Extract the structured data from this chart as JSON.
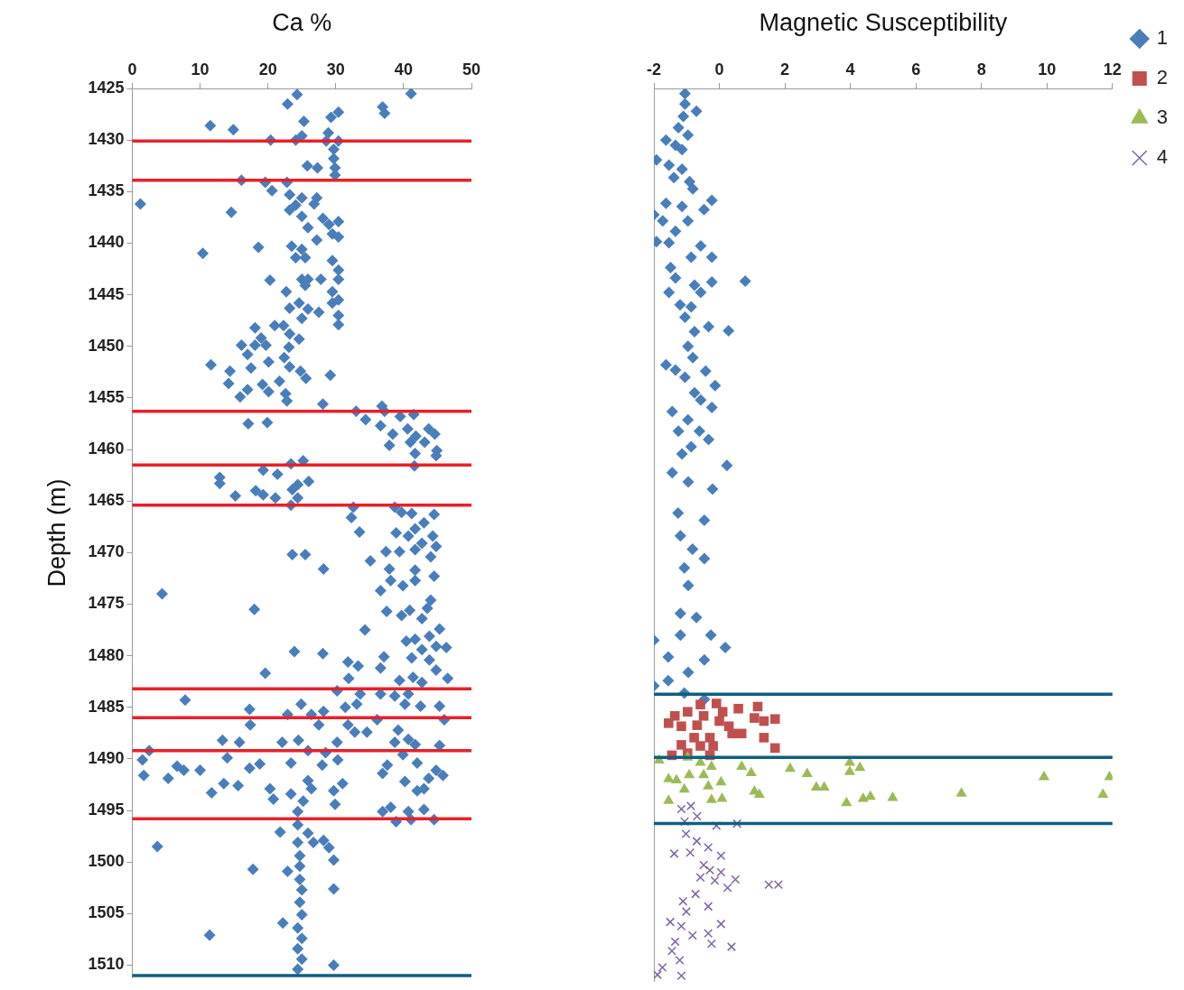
{
  "chart_data": [
    {
      "type": "scatter",
      "xlabel": "Ca %",
      "ylabel": "Depth (m)",
      "xlim": [
        0,
        50
      ],
      "xticks": [
        0,
        10,
        20,
        30,
        40,
        50
      ],
      "ylim": [
        1511.2,
        1425
      ],
      "yticks": [
        1425,
        1430,
        1435,
        1440,
        1445,
        1450,
        1455,
        1460,
        1465,
        1470,
        1475,
        1480,
        1485,
        1490,
        1495,
        1500,
        1505,
        1510
      ],
      "grid": false,
      "legend": false,
      "marker": "diamond",
      "ref_lines": [
        {
          "axis": "y",
          "value": 1430.1,
          "color": "#e8202a"
        },
        {
          "axis": "y",
          "value": 1433.9,
          "color": "#e8202a"
        },
        {
          "axis": "y",
          "value": 1456.3,
          "color": "#e8202a"
        },
        {
          "axis": "y",
          "value": 1461.5,
          "color": "#e8202a"
        },
        {
          "axis": "y",
          "value": 1465.4,
          "color": "#e8202a"
        },
        {
          "axis": "y",
          "value": 1483.2,
          "color": "#e8202a"
        },
        {
          "axis": "y",
          "value": 1486.0,
          "color": "#e8202a"
        },
        {
          "axis": "y",
          "value": 1489.2,
          "color": "#e8202a"
        },
        {
          "axis": "y",
          "value": 1495.8,
          "color": "#e8202a"
        },
        {
          "axis": "y",
          "value": 1511,
          "color": "#0f5f7f"
        }
      ],
      "series": [
        {
          "color": "#4a7ebb",
          "x": [
            24.3,
            41.1,
            22.9,
            36.9,
            37.2,
            30.4,
            29.3,
            25.3,
            11.5,
            14.9,
            28.9,
            25.0,
            20.4,
            24.1,
            30.4,
            28.6,
            29.7,
            29.7,
            29.9,
            25.8,
            27.3,
            29.9,
            16.1,
            19.6,
            22.8,
            20.6,
            23.2,
            25.0,
            27.2,
            24.1,
            26.8,
            1.2,
            14.6,
            23.2,
            25.0,
            28.1,
            30.4,
            29.0,
            25.9,
            30.4,
            27.2,
            29.5,
            23.5,
            18.6,
            25.0,
            25.5,
            10.4,
            24.1,
            29.5,
            30.4,
            30.4,
            27.8,
            20.3,
            25.0,
            25.9,
            25.5,
            29.5,
            22.7,
            30.4,
            29.5,
            24.6,
            23.2,
            25.9,
            27.5,
            30.4,
            25.0,
            30.4,
            18.1,
            21.0,
            22.3,
            23.2,
            24.6,
            19.0,
            16.1,
            18.1,
            19.7,
            17.0,
            23.1,
            22.4,
            20.1,
            11.6,
            17.5,
            23.2,
            24.8,
            14.4,
            25.6,
            29.2,
            14.2,
            19.2,
            21.7,
            17.0,
            20.1,
            22.6,
            15.9,
            22.8,
            28.1,
            33.0,
            36.8,
            37.2,
            34.4,
            39.5,
            41.5,
            36.6,
            17.1,
            19.9,
            40.6,
            38.4,
            43.7,
            41.8,
            44.6,
            37.9,
            41.0,
            43.1,
            44.9,
            41.7,
            44.8,
            41.6,
            19.3,
            23.4,
            25.2,
            21.4,
            12.9,
            12.9,
            26.0,
            24.4,
            18.2,
            15.2,
            19.3,
            21.1,
            23.6,
            24.4,
            23.4,
            32.6,
            32.3,
            38.7,
            39.7,
            41.2,
            44.5,
            43.0,
            41.7,
            33.5,
            38.9,
            40.7,
            44.3,
            42.7,
            44.8,
            41.7,
            37.4,
            39.4,
            23.6,
            25.5,
            44.0,
            35.1,
            28.2,
            37.9,
            41.7,
            38.1,
            41.7,
            39.9,
            44.5,
            4.4,
            36.6,
            44.0,
            18.0,
            37.5,
            40.9,
            39.7,
            43.5,
            42.7,
            34.3,
            45.3,
            43.8,
            41.7,
            40.4,
            46.3,
            44.8,
            42.7,
            23.9,
            28.1,
            37.1,
            41.2,
            43.8,
            31.8,
            33.3,
            36.6,
            19.6,
            31.9,
            46.5,
            41.4,
            39.4,
            42.7,
            44.8,
            30.2,
            33.6,
            36.6,
            38.7,
            40.7,
            7.8,
            24.9,
            33.1,
            31.4,
            40.2,
            42.5,
            45.3,
            17.3,
            22.9,
            26.4,
            28.2,
            36.1,
            46.0,
            17.4,
            27.5,
            31.8,
            34.6,
            39.2,
            32.8,
            40.7,
            13.3,
            15.8,
            22.1,
            24.5,
            30.2,
            38.7,
            41.7,
            45.3,
            2.5,
            25.9,
            28.5,
            39.9,
            14.0,
            30.3,
            1.5,
            23.4,
            18.8,
            42.0,
            28.0,
            37.6,
            6.6,
            7.6,
            10.0,
            17.3,
            44.8,
            36.9,
            1.7,
            5.3,
            45.8,
            43.7,
            25.9,
            13.5,
            15.6,
            40.2,
            31.0,
            20.3,
            26.4,
            42.0,
            43.0,
            11.7,
            29.7,
            20.8,
            23.4,
            25.2,
            24.4,
            29.9,
            36.9,
            38.1,
            40.7,
            43.0,
            38.9,
            41.1,
            44.5,
            21.8,
            24.4,
            25.9,
            26.7,
            28.2,
            29.0,
            3.7,
            24.4,
            24.7,
            29.7,
            24.7,
            17.8,
            22.9,
            24.7,
            25.0,
            29.7,
            24.7,
            25.0,
            22.2,
            24.4,
            11.4,
            25.0,
            24.4,
            25.0,
            29.7,
            24.4
          ],
          "values": [
            1425.6,
            1425.5,
            1426.5,
            1426.8,
            1427.4,
            1427.3,
            1427.8,
            1428.2,
            1428.6,
            1429.0,
            1429.3,
            1429.6,
            1430.0,
            1430.0,
            1430.1,
            1430.1,
            1430.9,
            1431.8,
            1432.7,
            1432.5,
            1432.7,
            1433.4,
            1433.9,
            1434.1,
            1434.1,
            1434.9,
            1435.3,
            1435.6,
            1435.6,
            1436.3,
            1436.2,
            1436.2,
            1437.0,
            1436.8,
            1437.4,
            1437.6,
            1437.9,
            1438.2,
            1438.5,
            1439.4,
            1439.7,
            1439.1,
            1440.3,
            1440.4,
            1440.6,
            1441.4,
            1441.0,
            1441.4,
            1441.7,
            1442.6,
            1443.5,
            1443.5,
            1443.6,
            1443.5,
            1443.5,
            1444.1,
            1444.7,
            1444.7,
            1445.5,
            1445.8,
            1445.8,
            1446.3,
            1446.4,
            1446.7,
            1447.0,
            1447.3,
            1447.9,
            1448.2,
            1448.0,
            1448.0,
            1448.8,
            1449.3,
            1449.2,
            1449.9,
            1449.9,
            1449.9,
            1450.8,
            1450.1,
            1451.1,
            1451.5,
            1451.8,
            1452.1,
            1452.0,
            1452.4,
            1452.4,
            1453.1,
            1452.8,
            1453.6,
            1453.7,
            1453.4,
            1454.2,
            1454.4,
            1454.6,
            1454.9,
            1455.3,
            1455.6,
            1456.3,
            1455.8,
            1456.3,
            1457.1,
            1456.8,
            1456.6,
            1457.7,
            1457.5,
            1457.4,
            1458.0,
            1458.5,
            1458.0,
            1458.7,
            1458.5,
            1459.6,
            1459.3,
            1459.3,
            1460.1,
            1460.4,
            1460.6,
            1461.6,
            1462.0,
            1461.4,
            1461.1,
            1462.4,
            1462.7,
            1463.3,
            1463.1,
            1463.4,
            1464.0,
            1464.5,
            1464.4,
            1464.7,
            1463.9,
            1464.7,
            1465.4,
            1465.6,
            1466.6,
            1465.6,
            1466.1,
            1466.2,
            1466.3,
            1467.1,
            1467.7,
            1468.0,
            1468.1,
            1468.4,
            1468.4,
            1469.1,
            1469.4,
            1469.7,
            1469.9,
            1469.9,
            1470.2,
            1470.2,
            1470.4,
            1470.8,
            1471.6,
            1471.6,
            1471.7,
            1472.7,
            1472.7,
            1473.2,
            1472.3,
            1474.0,
            1473.7,
            1474.6,
            1475.5,
            1475.7,
            1475.6,
            1476.1,
            1475.4,
            1476.4,
            1477.5,
            1477.4,
            1478.1,
            1478.4,
            1478.6,
            1479.2,
            1479.1,
            1479.4,
            1479.6,
            1479.8,
            1480.1,
            1480.2,
            1480.4,
            1480.6,
            1481.0,
            1481.2,
            1481.7,
            1482.2,
            1482.2,
            1482.1,
            1482.4,
            1482.6,
            1481.4,
            1483.4,
            1483.7,
            1483.7,
            1483.9,
            1483.7,
            1484.3,
            1484.7,
            1484.7,
            1485.0,
            1484.7,
            1484.9,
            1484.9,
            1485.2,
            1485.7,
            1485.7,
            1485.4,
            1486.2,
            1486.2,
            1486.7,
            1486.7,
            1486.7,
            1487.4,
            1487.2,
            1487.4,
            1488.1,
            1488.2,
            1488.4,
            1488.4,
            1488.2,
            1488.4,
            1488.4,
            1488.6,
            1488.7,
            1489.2,
            1489.2,
            1489.4,
            1489.6,
            1489.9,
            1490.1,
            1490.1,
            1490.4,
            1490.5,
            1490.4,
            1490.6,
            1490.6,
            1490.7,
            1491.1,
            1491.1,
            1490.9,
            1491.1,
            1491.4,
            1491.6,
            1491.9,
            1491.6,
            1491.9,
            1492.1,
            1492.4,
            1492.6,
            1492.2,
            1492.4,
            1492.9,
            1492.9,
            1493.1,
            1492.9,
            1493.3,
            1493.1,
            1493.9,
            1493.4,
            1494.1,
            1495.1,
            1494.4,
            1495.1,
            1494.7,
            1495.1,
            1494.9,
            1496.1,
            1495.9,
            1495.9,
            1497.1,
            1496.4,
            1497.2,
            1498.1,
            1497.9,
            1498.6,
            1498.5,
            1498.1,
            1499.4,
            1499.8,
            1500.4,
            1500.7,
            1500.9,
            1501.7,
            1502.7,
            1502.6,
            1503.9,
            1505.1,
            1505.9,
            1506.4,
            1507.1,
            1507.4,
            1508.4,
            1509.4,
            1510.0,
            1510.4
          ]
        }
      ]
    },
    {
      "type": "scatter",
      "xlabel": "Magnetic Susceptibility",
      "xlim": [
        -2,
        12
      ],
      "xticks": [
        -2,
        0,
        2,
        4,
        6,
        8,
        10,
        12
      ],
      "ylim": [
        1511.2,
        1425
      ],
      "tick_labels": "x",
      "grid": false,
      "legend": "top right",
      "ref_lines": [
        {
          "axis": "y",
          "value": 1483.5,
          "color": "#0f5f7f"
        },
        {
          "axis": "y",
          "value": 1489.6,
          "color": "#0f5f7f"
        },
        {
          "axis": "y",
          "value": 1496.0,
          "color": "#0f5f7f"
        }
      ],
      "series": [
        {
          "name": "1",
          "color": "#4a7ebb",
          "marker": "diamond",
          "x": [
            -1.05,
            -1.05,
            -0.7,
            -1.1,
            -1.25,
            -0.96,
            -1.63,
            -1.34,
            -1.14,
            -1.92,
            -1.54,
            -1.14,
            -1.39,
            -0.91,
            -0.81,
            -1.63,
            -0.23,
            -2.0,
            -1.14,
            -0.47,
            -1.73,
            -0.96,
            -1.34,
            -1.92,
            -1.54,
            -0.57,
            -0.23,
            -0.86,
            -1.49,
            -1.34,
            0.79,
            -0.23,
            -0.76,
            -1.54,
            -0.57,
            -1.2,
            -0.86,
            -1.05,
            -0.33,
            0.28,
            -0.76,
            -0.96,
            -0.81,
            -1.63,
            -1.34,
            -0.42,
            -1.05,
            -0.13,
            -0.76,
            -0.57,
            -0.23,
            -1.44,
            -0.96,
            -1.25,
            -0.61,
            -0.33,
            -0.86,
            -1.14,
            0.23,
            -1.44,
            -0.21,
            -0.95,
            -1.26,
            -0.46,
            -1.19,
            -0.82,
            -0.46,
            -1.07,
            -0.95,
            -1.19,
            -0.7,
            -2.0,
            -1.19,
            -0.26,
            0.18,
            -1.56,
            -0.46,
            -0.95,
            -2.0,
            -1.56,
            -1.07,
            -0.46
          ],
          "values": [
            1425.5,
            1426.5,
            1427.2,
            1427.7,
            1428.8,
            1429.5,
            1430.0,
            1430.5,
            1430.9,
            1431.9,
            1432.4,
            1432.8,
            1433.6,
            1434.0,
            1434.7,
            1436.1,
            1435.8,
            1437.2,
            1436.4,
            1436.7,
            1437.8,
            1437.8,
            1438.8,
            1439.8,
            1439.9,
            1440.2,
            1441.3,
            1441.3,
            1442.3,
            1443.3,
            1443.6,
            1443.7,
            1444.0,
            1444.7,
            1444.7,
            1445.9,
            1446.1,
            1447.1,
            1448.0,
            1448.4,
            1448.5,
            1449.9,
            1451.0,
            1451.7,
            1452.2,
            1452.3,
            1452.9,
            1453.7,
            1454.4,
            1455.1,
            1455.8,
            1456.2,
            1457.0,
            1458.1,
            1458.1,
            1458.9,
            1459.6,
            1460.3,
            1461.4,
            1462.1,
            1463.7,
            1463.0,
            1466.0,
            1466.7,
            1468.2,
            1469.5,
            1470.4,
            1471.3,
            1473.0,
            1475.7,
            1476.1,
            1478.3,
            1477.8,
            1477.8,
            1479.0,
            1479.9,
            1480.2,
            1481.4,
            1482.7,
            1482.2,
            1483.4,
            1484.0
          ]
        },
        {
          "name": "2",
          "color": "#c0504d",
          "marker": "square",
          "x": [
            -1.55,
            -1.36,
            -1.16,
            -0.97,
            -0.58,
            -0.48,
            -0.09,
            0.1,
            0.58,
            1.17,
            1.07,
            1.36,
            1.7,
            0.29,
            0.68,
            0.39,
            -0.77,
            -0.29,
            -1.16,
            -0.58,
            -0.19,
            1.36,
            1.7,
            -1.45,
            -0.97,
            -0.29,
            -0.68,
            0.0
          ],
          "values": [
            1486.3,
            1485.6,
            1486.6,
            1485.2,
            1484.5,
            1485.6,
            1484.4,
            1485.2,
            1484.9,
            1484.7,
            1485.8,
            1486.1,
            1485.9,
            1486.6,
            1487.3,
            1487.3,
            1487.7,
            1487.7,
            1488.4,
            1488.5,
            1488.5,
            1487.7,
            1488.7,
            1489.4,
            1489.2,
            1489.4,
            1486.5,
            1486.1
          ]
        },
        {
          "name": "3",
          "color": "#9bbb59",
          "marker": "triangle",
          "x": [
            -1.84,
            -0.97,
            -0.58,
            -0.24,
            0.68,
            0.97,
            2.16,
            2.68,
            3.98,
            4.29,
            3.98,
            -1.55,
            -1.31,
            -0.92,
            -0.48,
            0.05,
            -1.07,
            -0.34,
            1.07,
            1.22,
            2.96,
            3.2,
            -1.55,
            -0.24,
            0.08,
            3.88,
            4.39,
            4.61,
            5.29,
            7.39,
            9.91,
            11.91,
            11.71
          ],
          "values": [
            1489.9,
            1489.6,
            1490.1,
            1490.5,
            1490.5,
            1491.1,
            1490.7,
            1491.2,
            1490.1,
            1490.6,
            1491.0,
            1491.7,
            1491.8,
            1491.3,
            1491.3,
            1492.0,
            1492.7,
            1492.4,
            1492.9,
            1493.2,
            1492.5,
            1492.5,
            1493.8,
            1493.7,
            1493.6,
            1494.0,
            1493.6,
            1493.4,
            1493.5,
            1493.1,
            1491.5,
            1491.5,
            1493.2
          ]
        },
        {
          "name": "4",
          "color": "#8064a2",
          "marker": "cross",
          "x": [
            -1.16,
            -0.87,
            -0.68,
            -1.06,
            -0.09,
            0.54,
            -1.02,
            -0.69,
            -1.38,
            -0.89,
            -0.34,
            0.05,
            -0.48,
            -0.29,
            0.05,
            0.49,
            1.51,
            1.8,
            -0.58,
            -0.14,
            0.25,
            -0.73,
            -1.11,
            -0.34,
            -1.01,
            -1.5,
            -1.16,
            0.05,
            -0.82,
            -0.34,
            -0.24,
            0.37,
            -1.35,
            -1.45,
            -1.21,
            -1.74,
            -1.89,
            -1.16
          ],
          "values": [
            1494.6,
            1494.3,
            1495.3,
            1495.8,
            1496.2,
            1496.0,
            1497.0,
            1497.7,
            1498.9,
            1498.8,
            1498.3,
            1499.1,
            1500.0,
            1500.5,
            1500.7,
            1501.4,
            1501.9,
            1501.9,
            1501.2,
            1501.5,
            1502.2,
            1502.8,
            1503.5,
            1504.0,
            1504.5,
            1505.5,
            1505.9,
            1505.7,
            1506.8,
            1506.6,
            1507.6,
            1507.9,
            1507.4,
            1508.3,
            1509.2,
            1509.9,
            1510.6,
            1510.7
          ]
        }
      ]
    }
  ]
}
